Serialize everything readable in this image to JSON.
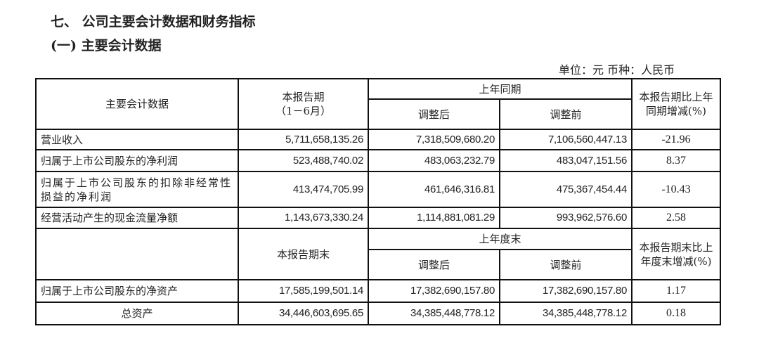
{
  "heading": "七、 公司主要会计数据和财务指标",
  "subheading": "(一) 主要会计数据",
  "unit": "单位：元 币种：人民币",
  "header1": {
    "item": "主要会计数据",
    "current": "本报告期",
    "current_sub": "（1－6月）",
    "prior": "上年同期",
    "adjusted_after": "调整后",
    "adjusted_before": "调整前",
    "change": "本报告期比上年同期增减(%)"
  },
  "rows1": [
    {
      "label": "营业收入",
      "current": "5,711,658,135.26",
      "after": "7,318,509,680.20",
      "before": "7,106,560,447.13",
      "change": "-21.96"
    },
    {
      "label": "归属于上市公司股东的净利润",
      "current": "523,488,740.02",
      "after": "483,063,232.79",
      "before": "483,047,151.56",
      "change": "8.37"
    },
    {
      "label": "归属于上市公司股东的扣除非经常性损益的净利润",
      "current": "413,474,705.99",
      "after": "461,646,316.81",
      "before": "475,367,454.44",
      "change": "-10.43"
    },
    {
      "label": "经营活动产生的现金流量净额",
      "current": "1,143,673,330.24",
      "after": "1,114,881,081.29",
      "before": "993,962,576.60",
      "change": "2.58"
    }
  ],
  "header2": {
    "current": "本报告期末",
    "prior": "上年度末",
    "adjusted_after": "调整后",
    "adjusted_before": "调整前",
    "change": "本报告期末比上年度末增减(%)"
  },
  "rows2": [
    {
      "label": "归属于上市公司股东的净资产",
      "current": "17,585,199,501.14",
      "after": "17,382,690,157.80",
      "before": "17,382,690,157.80",
      "change": "1.17"
    },
    {
      "label": "总资产",
      "current": "34,446,603,695.65",
      "after": "34,385,448,778.12",
      "before": "34,385,448,778.12",
      "change": "0.18"
    }
  ]
}
